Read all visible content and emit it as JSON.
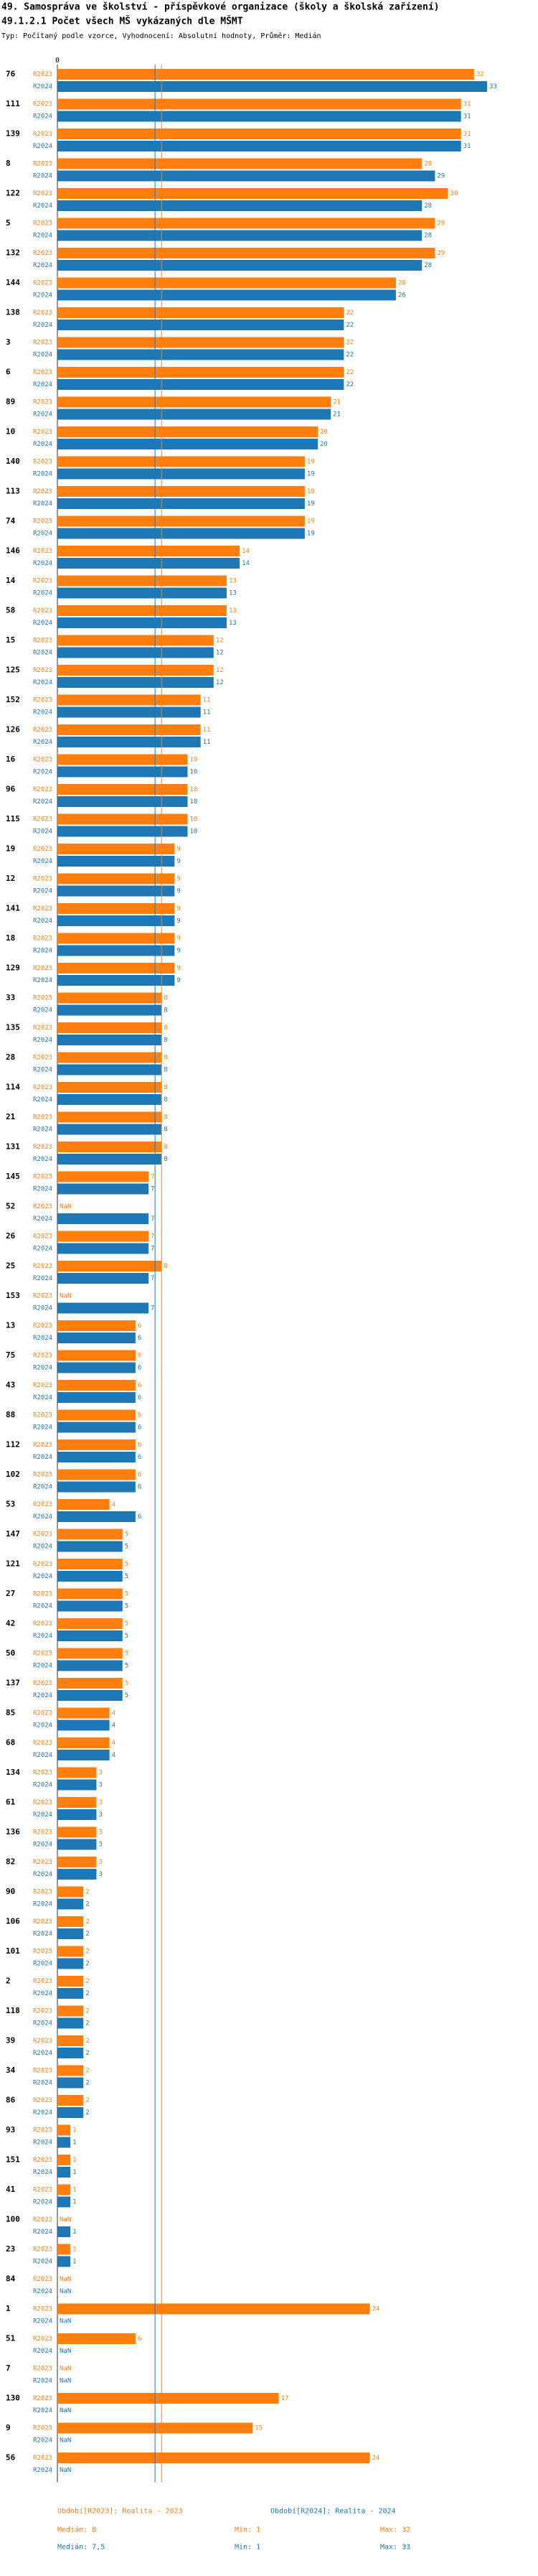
{
  "chart_data": {
    "type": "bar",
    "orientation": "horizontal",
    "title": "49. Samospráva ve školství - příspěvkové organizace (školy a školská zařízení)",
    "subtitle": "49.1.2.1 Počet všech MŠ vykázaných dle MŠMT",
    "note": "Typ: Počítaný podle vzorce, Vyhodnocení: Absolutní hodnoty, Průměr: Medián",
    "xlim": [
      0,
      33
    ],
    "xticks": [
      0
    ],
    "categories": [
      "76",
      "111",
      "139",
      "8",
      "122",
      "5",
      "132",
      "144",
      "138",
      "3",
      "6",
      "89",
      "10",
      "140",
      "113",
      "74",
      "146",
      "14",
      "58",
      "15",
      "125",
      "152",
      "126",
      "16",
      "96",
      "115",
      "19",
      "12",
      "141",
      "18",
      "129",
      "33",
      "135",
      "28",
      "114",
      "21",
      "131",
      "145",
      "52",
      "26",
      "25",
      "153",
      "13",
      "75",
      "43",
      "88",
      "112",
      "102",
      "53",
      "147",
      "121",
      "27",
      "42",
      "50",
      "137",
      "85",
      "68",
      "134",
      "61",
      "136",
      "82",
      "90",
      "106",
      "101",
      "2",
      "118",
      "39",
      "34",
      "86",
      "93",
      "151",
      "41",
      "100",
      "23",
      "84",
      "1",
      "51",
      "7",
      "130",
      "9",
      "56"
    ],
    "series": [
      {
        "name": "R2023",
        "color": "#ff7f0e",
        "legend": "Období[R2023]: Realita - 2023",
        "median": {
          "value": 8,
          "label": "Medián: 8"
        },
        "min_label": "Min: 1",
        "max_label": "Max: 32",
        "values": [
          32,
          31,
          31,
          28,
          30,
          29,
          29,
          26,
          22,
          22,
          22,
          21,
          20,
          19,
          19,
          19,
          14,
          13,
          13,
          12,
          12,
          11,
          11,
          10,
          10,
          10,
          9,
          9,
          9,
          9,
          9,
          8,
          8,
          8,
          8,
          8,
          8,
          7,
          null,
          7,
          8,
          null,
          6,
          6,
          6,
          6,
          6,
          6,
          4,
          5,
          5,
          5,
          5,
          5,
          5,
          4,
          4,
          3,
          3,
          3,
          3,
          2,
          2,
          2,
          2,
          2,
          2,
          2,
          2,
          1,
          1,
          1,
          null,
          1,
          null,
          24,
          6,
          null,
          17,
          15,
          24
        ],
        "value_labels": [
          "32",
          "31",
          "31",
          "28",
          "30",
          "29",
          "29",
          "26",
          "22",
          "22",
          "22",
          "21",
          "20",
          "19",
          "19",
          "19",
          "14",
          "13",
          "13",
          "12",
          "12",
          "11",
          "11",
          "10",
          "10",
          "10",
          "9",
          "9",
          "9",
          "9",
          "9",
          "8",
          "8",
          "8",
          "8",
          "8",
          "8",
          "7",
          "NaN",
          "7",
          "8",
          "NaN",
          "6",
          "6",
          "6",
          "6",
          "6",
          "6",
          "4",
          "5",
          "5",
          "5",
          "5",
          "5",
          "5",
          "4",
          "4",
          "3",
          "3",
          "3",
          "3",
          "2",
          "2",
          "2",
          "2",
          "2",
          "2",
          "2",
          "2",
          "1",
          "1",
          "1",
          "NaN",
          "1",
          "NaN",
          "24",
          "6",
          "NaN",
          "17",
          "15",
          "24"
        ]
      },
      {
        "name": "R2024",
        "color": "#1f77b4",
        "legend": "Období[R2024]: Realita - 2024",
        "median": {
          "value": 7.5,
          "label": "Medián: 7,5"
        },
        "min_label": "Min: 1",
        "max_label": "Max: 33",
        "values": [
          33,
          31,
          31,
          29,
          28,
          28,
          28,
          26,
          22,
          22,
          22,
          21,
          20,
          19,
          19,
          19,
          14,
          13,
          13,
          12,
          12,
          11,
          11,
          10,
          10,
          10,
          9,
          9,
          9,
          9,
          9,
          8,
          8,
          8,
          8,
          8,
          8,
          7,
          7,
          7,
          7,
          7,
          6,
          6,
          6,
          6,
          6,
          6,
          6,
          5,
          5,
          5,
          5,
          5,
          5,
          4,
          4,
          3,
          3,
          3,
          3,
          2,
          2,
          2,
          2,
          2,
          2,
          2,
          2,
          1,
          1,
          1,
          1,
          1,
          null,
          null,
          null,
          null,
          null,
          null,
          null
        ],
        "value_labels": [
          "33",
          "31",
          "31",
          "29",
          "28",
          "28",
          "28",
          "26",
          "22",
          "22",
          "22",
          "21",
          "20",
          "19",
          "19",
          "19",
          "14",
          "13",
          "13",
          "12",
          "12",
          "11",
          "11",
          "10",
          "10",
          "10",
          "9",
          "9",
          "9",
          "9",
          "9",
          "8",
          "8",
          "8",
          "8",
          "8",
          "8",
          "7",
          "7",
          "7",
          "7",
          "7",
          "6",
          "6",
          "6",
          "6",
          "6",
          "6",
          "6",
          "5",
          "5",
          "5",
          "5",
          "5",
          "5",
          "4",
          "4",
          "3",
          "3",
          "3",
          "3",
          "2",
          "2",
          "2",
          "2",
          "2",
          "2",
          "2",
          "2",
          "1",
          "1",
          "1",
          "1",
          "1",
          "NaN",
          "NaN",
          "NaN",
          "NaN",
          "NaN",
          "NaN",
          "NaN"
        ]
      }
    ]
  }
}
